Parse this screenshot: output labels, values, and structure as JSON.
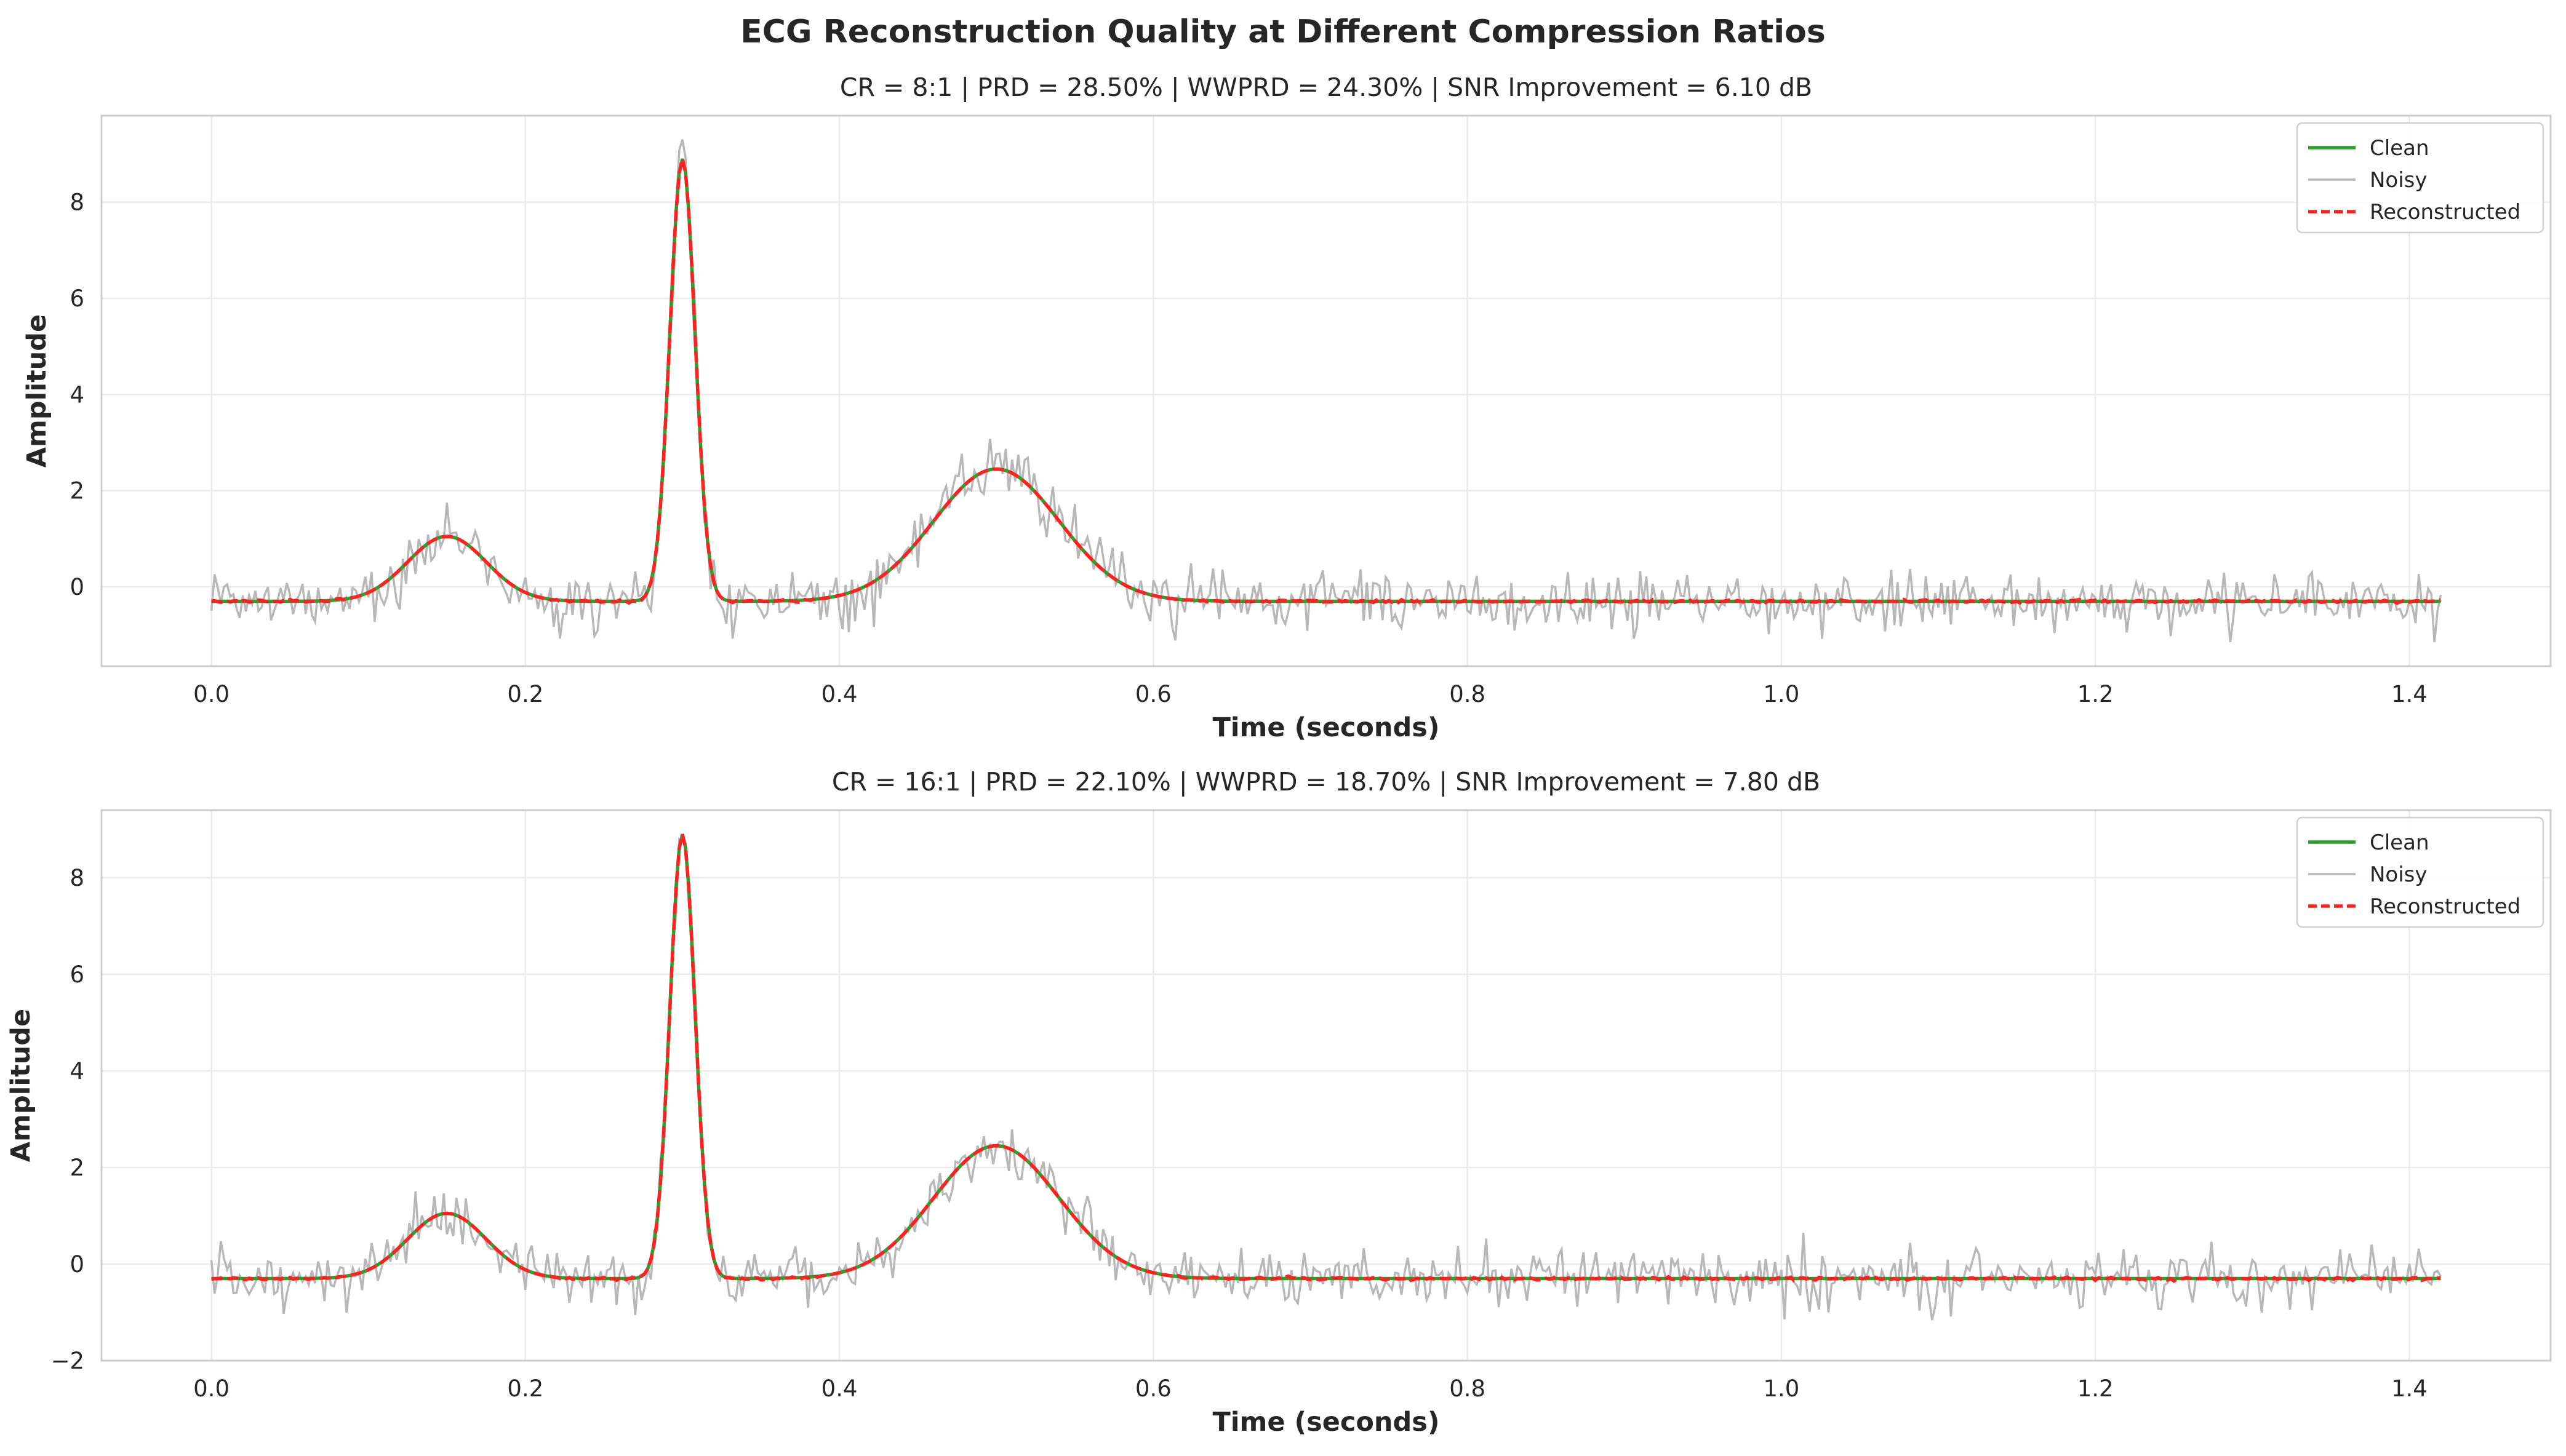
{
  "figure_title": "ECG Reconstruction Quality at Different Compression Ratios",
  "colors": {
    "clean": "#2ca02c",
    "noisy": "#b8b8b8",
    "reconstructed": "#ff2020",
    "grid": "#ebebeb",
    "axis": "#cccccc"
  },
  "chart_data": [
    {
      "type": "line",
      "title": "CR = 8:1 | PRD = 28.50% | WWPRD = 24.30% | SNR Improvement = 6.10 dB",
      "xlabel": "Time (seconds)",
      "ylabel": "Amplitude",
      "xlim": [
        -0.07,
        1.49
      ],
      "ylim": [
        -1.65,
        9.8
      ],
      "xticks": [
        "0.0",
        "0.2",
        "0.4",
        "0.6",
        "0.8",
        "1.0",
        "1.2",
        "1.4"
      ],
      "yticks": [
        "0",
        "2",
        "4",
        "6",
        "8"
      ],
      "grid": true,
      "legend": {
        "position": "top-right",
        "entries": [
          "Clean",
          "Noisy",
          "Reconstructed"
        ]
      },
      "x_range": [
        0.0,
        1.42
      ],
      "clean_waveform": {
        "baseline": -0.3,
        "components": [
          {
            "wave": "P",
            "center": 0.15,
            "peak": 1.05,
            "width": 0.025
          },
          {
            "wave": "QRS",
            "center": 0.3,
            "peak": 8.9,
            "width": 0.008
          },
          {
            "wave": "T",
            "center": 0.5,
            "peak": 2.45,
            "width": 0.04
          }
        ]
      },
      "noisy_series": {
        "noise_std": 0.3,
        "max_value": 9.3,
        "min_value": -1.15
      },
      "series": [
        {
          "name": "Clean"
        },
        {
          "name": "Noisy"
        },
        {
          "name": "Reconstructed"
        }
      ]
    },
    {
      "type": "line",
      "title": "CR = 16:1 | PRD = 22.10% | WWPRD = 18.70% | SNR Improvement = 7.80 dB",
      "xlabel": "Time (seconds)",
      "ylabel": "Amplitude",
      "xlim": [
        -0.07,
        1.49
      ],
      "ylim": [
        -2.0,
        9.4
      ],
      "xticks": [
        "0.0",
        "0.2",
        "0.4",
        "0.6",
        "0.8",
        "1.0",
        "1.2",
        "1.4"
      ],
      "yticks": [
        "−2",
        "0",
        "2",
        "4",
        "6",
        "8"
      ],
      "grid": true,
      "legend": {
        "position": "top-right",
        "entries": [
          "Clean",
          "Noisy",
          "Reconstructed"
        ]
      },
      "x_range": [
        0.0,
        1.42
      ],
      "clean_waveform": {
        "baseline": -0.3,
        "components": [
          {
            "wave": "P",
            "center": 0.15,
            "peak": 1.05,
            "width": 0.025
          },
          {
            "wave": "QRS",
            "center": 0.3,
            "peak": 8.9,
            "width": 0.008
          },
          {
            "wave": "T",
            "center": 0.5,
            "peak": 2.45,
            "width": 0.04
          }
        ]
      },
      "noisy_series": {
        "noise_std": 0.3,
        "max_value": 8.8,
        "min_value": -1.5
      },
      "series": [
        {
          "name": "Clean"
        },
        {
          "name": "Noisy"
        },
        {
          "name": "Reconstructed"
        }
      ]
    }
  ]
}
